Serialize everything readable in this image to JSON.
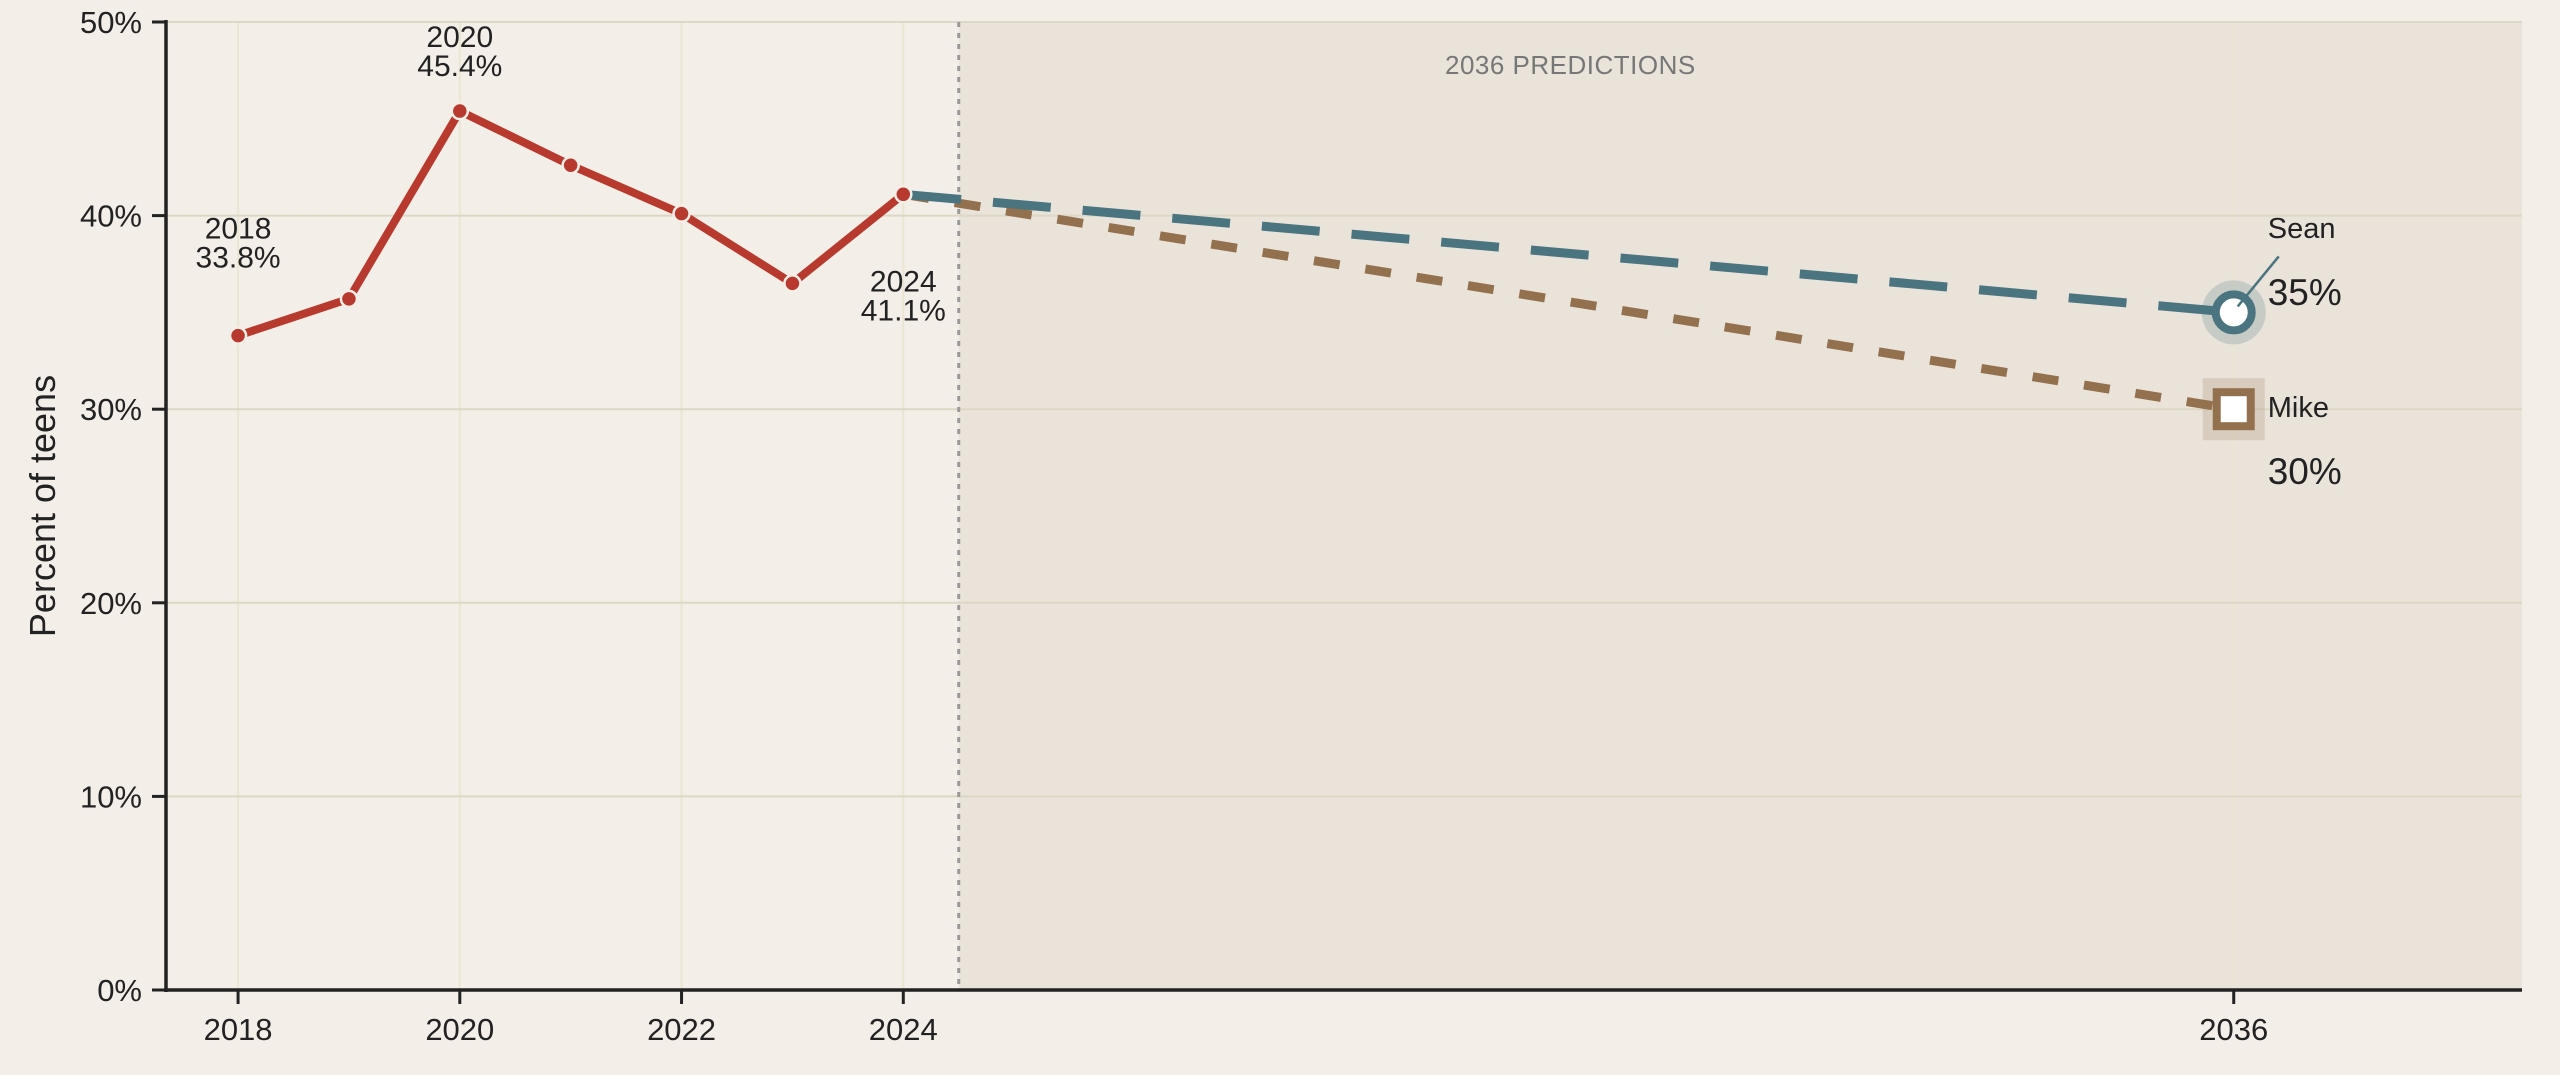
{
  "chart_data": {
    "type": "line",
    "ylabel": "Percent of teens",
    "xlabel": "",
    "ylim": [
      0,
      50
    ],
    "xlim": [
      2017.35,
      2038.6
    ],
    "y_ticks": [
      "0%",
      "10%",
      "20%",
      "30%",
      "40%",
      "50%"
    ],
    "y_tick_values": [
      0,
      10,
      20,
      30,
      40,
      50
    ],
    "x_ticks": [
      "2018",
      "2020",
      "2022",
      "2024",
      "2036"
    ],
    "x_tick_values": [
      2018,
      2020,
      2022,
      2024,
      2036
    ],
    "grid": "horizontal",
    "prediction_region": {
      "label": "2036 PREDICTIONS",
      "start": 2024.5
    },
    "series": [
      {
        "x": [
          2018,
          2019,
          2020,
          2021,
          2022,
          2023,
          2024
        ],
        "values": [
          33.8,
          35.7,
          45.4,
          42.6,
          40.1,
          36.5,
          41.1
        ],
        "color": "#b83a2e",
        "style": "solid"
      },
      {
        "name": "Sean",
        "x": [
          2024,
          2036
        ],
        "values": [
          41.1,
          35
        ],
        "color": "#4a7580",
        "style": "dashed",
        "marker": "circle",
        "value_label": "35%"
      },
      {
        "name": "Mike",
        "x": [
          2024,
          2036
        ],
        "values": [
          41.1,
          30
        ],
        "color": "#94714e",
        "style": "dashed",
        "marker": "square",
        "value_label": "30%"
      }
    ],
    "annotations": [
      {
        "x": 2018,
        "y": 33.8,
        "year": "2018",
        "value": "33.8%"
      },
      {
        "x": 2020,
        "y": 45.4,
        "year": "2020",
        "value": "45.4%"
      },
      {
        "x": 2024,
        "y": 41.1,
        "year": "2024",
        "value": "41.1%"
      }
    ],
    "colors": {
      "background": "#f3efe8",
      "prediction_band": "#e9e3da",
      "grid": "#ddd7c5",
      "axis": "#222222"
    }
  }
}
